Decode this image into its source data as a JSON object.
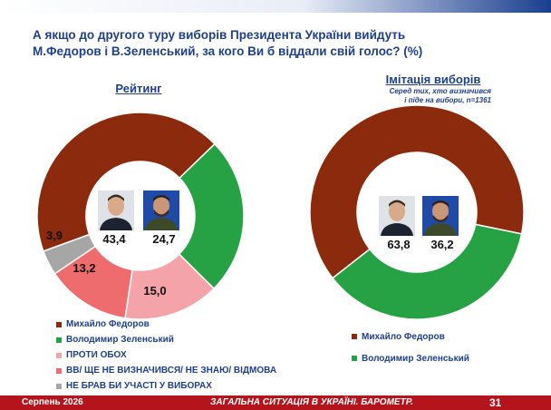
{
  "title_line1": "А якщо до другого туру виборів Президента України вийдуть",
  "title_line2": "М.Федоров і В.Зеленський, за кого Ви б віддали свій голос? (%)",
  "colors": {
    "fedorov": "#8b2a0c",
    "zelensky": "#26a245",
    "both_against": "#f4a3a8",
    "undecided": "#ee6b6e",
    "no_vote": "#a6a6a6"
  },
  "chart_data": [
    {
      "type": "pie",
      "title": "Рейтинг",
      "categories": [
        "Михайло Федоров",
        "Володимир Зеленський",
        "ПРОТИ ОБОХ",
        "ВВ/ ЩЕ НЕ ВИЗНАЧИВСЯ/ НЕ ЗНАЮ/ ВІДМОВА",
        "НЕ БРАВ БИ УЧАСТІ У ВИБОРАХ"
      ],
      "values": [
        43.4,
        24.7,
        15.0,
        13.2,
        3.9
      ],
      "labels": [
        "43,4",
        "24,7",
        "15,0",
        "13,2",
        "3,9"
      ],
      "donut": true
    },
    {
      "type": "pie",
      "title": "Імітація виборів",
      "subtitle_line1": "Серед тих, хто визначився",
      "subtitle_line2": "і піде на вибори, n=1361",
      "categories": [
        "Михайло Федоров",
        "Володимир Зеленський"
      ],
      "values": [
        63.8,
        36.2
      ],
      "labels": [
        "63,8",
        "36,2"
      ],
      "donut": true
    }
  ],
  "footer": {
    "date": "Серпень 2026",
    "text": "ЗАГАЛЬНА СИТУАЦІЯ В УКРАЇНІ. БАРОМЕТР.",
    "page": "31"
  }
}
